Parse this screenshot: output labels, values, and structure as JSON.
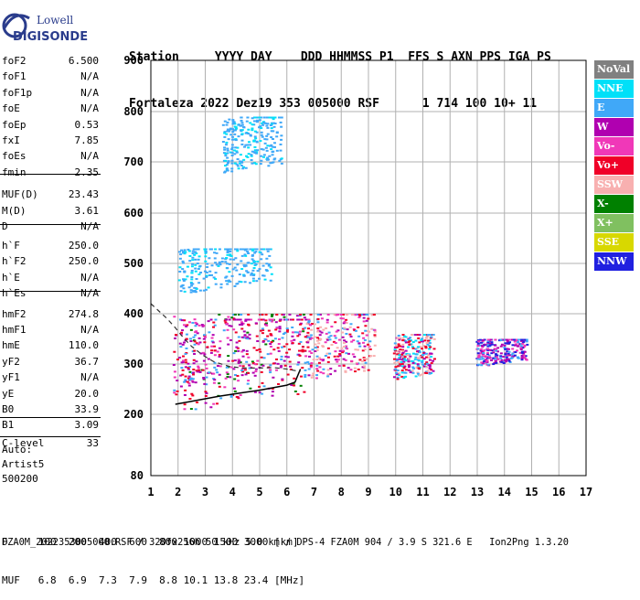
{
  "logo": {
    "line1": "Lowell",
    "line2": "DIGISONDE"
  },
  "header": {
    "labels": "Station     YYYY DAY    DDD HHMMSS P1  FFS S AXN PPS IGA PS",
    "values": "Fortaleza 2022 Dez19 353 005000 RSF      1 714 100 10+ 11"
  },
  "params": [
    {
      "name": "foF2",
      "value": "6.500"
    },
    {
      "name": "foF1",
      "value": "N/A"
    },
    {
      "name": "foF1p",
      "value": "N/A"
    },
    {
      "name": "foE",
      "value": "N/A"
    },
    {
      "name": "foEp",
      "value": "0.53"
    },
    {
      "name": "fxI",
      "value": "7.85"
    },
    {
      "name": "foEs",
      "value": "N/A"
    },
    {
      "name": "fmin",
      "value": "2.35"
    },
    {
      "name": "MUF(D)",
      "value": "23.43"
    },
    {
      "name": "M(D)",
      "value": "3.61"
    },
    {
      "name": "D",
      "value": "N/A"
    },
    {
      "name": "h`F",
      "value": "250.0"
    },
    {
      "name": "h`F2",
      "value": "250.0"
    },
    {
      "name": "h`E",
      "value": "N/A"
    },
    {
      "name": "h`Es",
      "value": "N/A"
    },
    {
      "name": "hmF2",
      "value": "274.8"
    },
    {
      "name": "hmF1",
      "value": "N/A"
    },
    {
      "name": "hmE",
      "value": "110.0"
    },
    {
      "name": "yF2",
      "value": "36.7"
    },
    {
      "name": "yF1",
      "value": "N/A"
    },
    {
      "name": "yE",
      "value": "20.0"
    },
    {
      "name": "B0",
      "value": "33.9"
    },
    {
      "name": "B1",
      "value": "3.09"
    },
    {
      "name": "C-level",
      "value": "33"
    }
  ],
  "auto": {
    "line1": "Auto:",
    "line2": "Artist5",
    "line3": "500200"
  },
  "legend": [
    {
      "label": "NoVal",
      "color": "#808080"
    },
    {
      "label": "NNE",
      "color": "#00e0f8"
    },
    {
      "label": "E",
      "color": "#40a8f8"
    },
    {
      "label": "W",
      "color": "#b000b0"
    },
    {
      "label": "Vo-",
      "color": "#f038b8"
    },
    {
      "label": "Vo+",
      "color": "#f00028"
    },
    {
      "label": "SSW",
      "color": "#f8b0b0"
    },
    {
      "label": "X-",
      "color": "#008000"
    },
    {
      "label": "X+",
      "color": "#80c060"
    },
    {
      "label": "SSE",
      "color": "#d8d800"
    },
    {
      "label": "NNW",
      "color": "#2020e0"
    }
  ],
  "footer": {
    "line1": "D     100  200  400  600  800 1000 1500 3000 [km]",
    "line2": "MUF   6.8  6.9  7.3  7.9  8.8 10.1 13.8 23.4 [MHz]",
    "line3": "FZA0M_2022353005000.RSF / 320fx256h 50 kHz 5.0 km / DPS-4 FZA0M 904 / 3.9 S 321.6 E   Ion2Png 1.3.20"
  },
  "chart_data": {
    "type": "scatter",
    "title": "",
    "xlabel": "",
    "ylabel": "",
    "xlim": [
      1,
      17
    ],
    "ylim": [
      80,
      900
    ],
    "x_ticks": [
      1,
      2,
      3,
      4,
      5,
      6,
      7,
      8,
      9,
      10,
      11,
      12,
      13,
      14,
      15,
      16,
      17
    ],
    "y_ticks": [
      80,
      200,
      300,
      400,
      500,
      600,
      700,
      800,
      900
    ],
    "grid": true,
    "legend_position": "right",
    "echo_clusters": [
      {
        "polarization": "Vo+",
        "x_range": [
          1.8,
          6.6
        ],
        "y_range": [
          205,
          400
        ]
      },
      {
        "polarization": "W",
        "x_range": [
          2.0,
          6.8
        ],
        "y_range": [
          260,
          390
        ]
      },
      {
        "polarization": "E",
        "x_range": [
          2.0,
          5.4
        ],
        "y_range": [
          440,
          530
        ]
      },
      {
        "polarization": "E",
        "x_range": [
          3.6,
          5.8
        ],
        "y_range": [
          680,
          790
        ]
      },
      {
        "polarization": "Vo-",
        "x_range": [
          6.6,
          9.2
        ],
        "y_range": [
          270,
          400
        ]
      },
      {
        "polarization": "SSW",
        "x_range": [
          9.9,
          11.4
        ],
        "y_range": [
          270,
          360
        ]
      },
      {
        "polarization": "NNW",
        "x_range": [
          12.9,
          14.8
        ],
        "y_range": [
          295,
          350
        ]
      }
    ],
    "trace": {
      "name": "O-trace",
      "x": [
        1.9,
        2.5,
        3.0,
        3.5,
        4.0,
        4.5,
        5.0,
        5.5,
        6.0,
        6.3,
        6.5
      ],
      "y": [
        220,
        226,
        231,
        236,
        240,
        244,
        248,
        253,
        258,
        264,
        290
      ]
    },
    "profile": {
      "x": [
        1.0,
        1.3,
        1.6,
        1.9,
        2.2,
        2.5,
        2.9,
        3.3,
        3.9,
        4.4,
        5.0,
        5.5,
        6.0,
        6.5
      ],
      "y": [
        420,
        405,
        390,
        372,
        352,
        335,
        318,
        305,
        295,
        292,
        292,
        293,
        290,
        285
      ]
    }
  }
}
